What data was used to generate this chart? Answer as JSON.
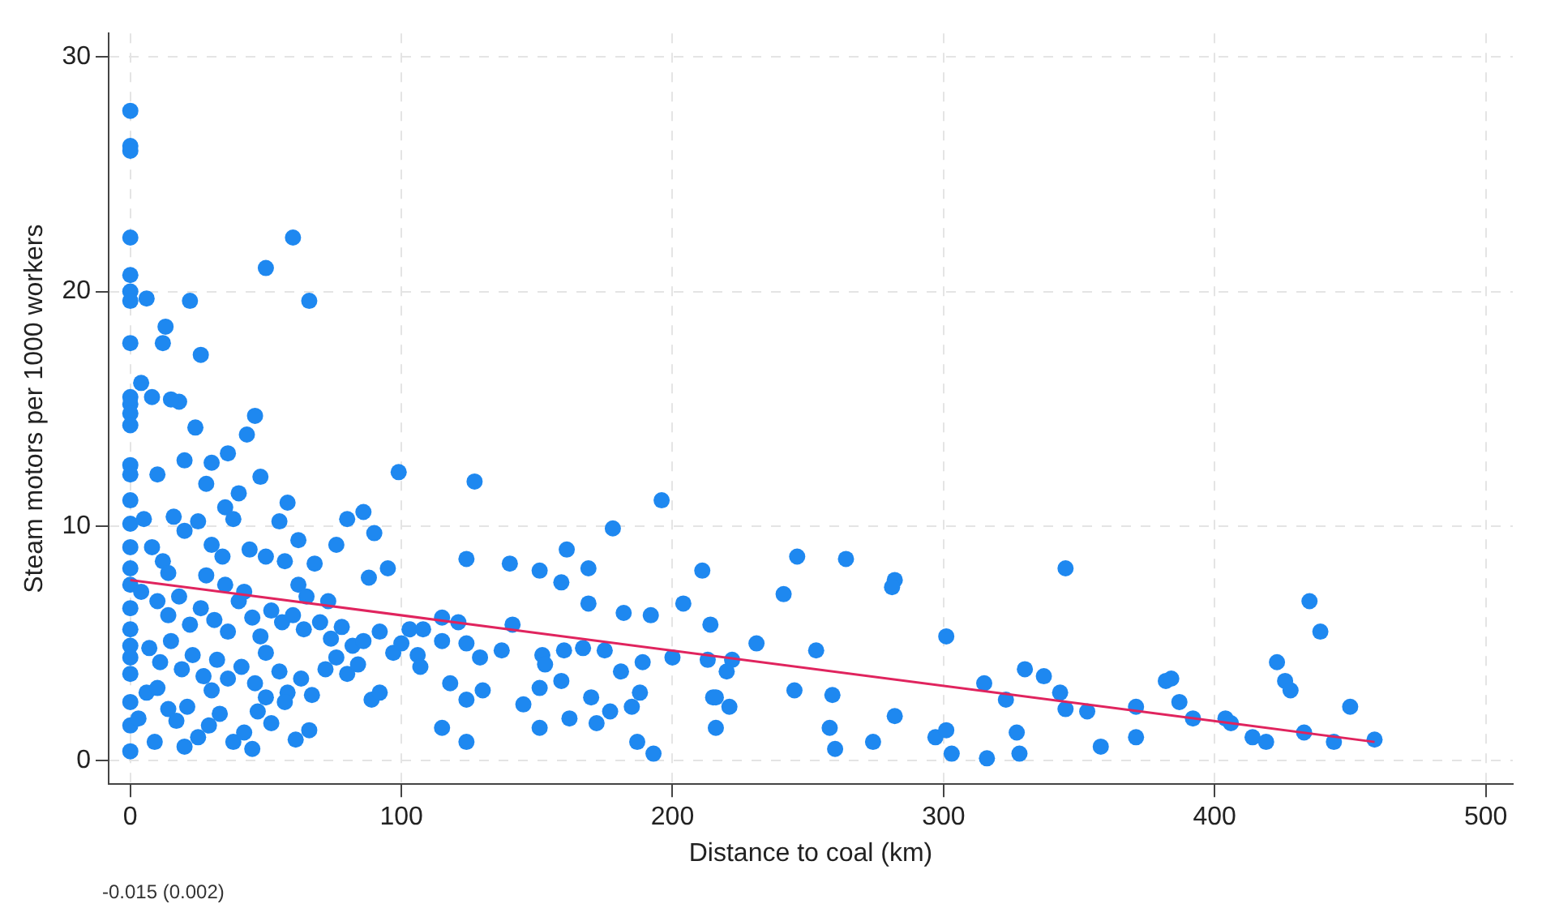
{
  "chart_data": {
    "type": "scatter",
    "xlabel": "Distance to coal (km)",
    "ylabel": "Steam motors per 1000 workers",
    "xlim": [
      -8,
      510
    ],
    "ylim": [
      -1,
      31
    ],
    "xticks": [
      0,
      100,
      200,
      300,
      400,
      500
    ],
    "yticks": [
      0,
      10,
      20,
      30
    ],
    "grid": true,
    "legend": false,
    "marker": "circle",
    "annotations": [
      "-0.015 (0.002)"
    ],
    "series": [
      {
        "type": "scatter",
        "color": "#1e88f0",
        "x": [
          0,
          0,
          0,
          0,
          0,
          0,
          0,
          0,
          0,
          0,
          0,
          0,
          0,
          0,
          0,
          0,
          0,
          0,
          0,
          0,
          0,
          0,
          0,
          0,
          0,
          0,
          0,
          4,
          6,
          12,
          13,
          18,
          22,
          24,
          26,
          36,
          43,
          46,
          50,
          60,
          66,
          58,
          62,
          30,
          40,
          10,
          15,
          8,
          20,
          28,
          35,
          48,
          55,
          5,
          8,
          12,
          16,
          20,
          25,
          30,
          34,
          38,
          44,
          50,
          57,
          62,
          68,
          76,
          80,
          86,
          90,
          99,
          95,
          88,
          4,
          10,
          14,
          18,
          22,
          26,
          31,
          36,
          40,
          45,
          48,
          52,
          56,
          60,
          64,
          70,
          74,
          78,
          82,
          86,
          92,
          97,
          100,
          103,
          106,
          7,
          11,
          15,
          19,
          23,
          27,
          32,
          36,
          41,
          46,
          50,
          55,
          58,
          63,
          67,
          72,
          76,
          80,
          84,
          89,
          92,
          6,
          10,
          14,
          17,
          21,
          25,
          29,
          33,
          38,
          42,
          47,
          52,
          57,
          61,
          66,
          20,
          9,
          45,
          3,
          30,
          50,
          35,
          28,
          42,
          14,
          73,
          65,
          127,
          196,
          178,
          124,
          140,
          151,
          161,
          159,
          169,
          169,
          182,
          192,
          204,
          211,
          214,
          241,
          246,
          264,
          282,
          281,
          301,
          231,
          253,
          222,
          220,
          213,
          200,
          189,
          181,
          175,
          167,
          160,
          152,
          153,
          159,
          151,
          141,
          137,
          129,
          124,
          130,
          124,
          118,
          115,
          115,
          121,
          108,
          107,
          145,
          151,
          170,
          162,
          172,
          177,
          185,
          188,
          187,
          193,
          115,
          124,
          215,
          216,
          221,
          216,
          245,
          259,
          258,
          260,
          274,
          282,
          297,
          301,
          303,
          345,
          315,
          323,
          330,
          337,
          343,
          345,
          353,
          327,
          328,
          316,
          358,
          371,
          371,
          382,
          384,
          387,
          392,
          404,
          406,
          414,
          419,
          423,
          426,
          428,
          433,
          435,
          439,
          444,
          450,
          459
        ],
        "values": [
          27.7,
          26.2,
          26.0,
          22.3,
          20.7,
          20.0,
          19.6,
          17.8,
          15.5,
          15.2,
          14.8,
          14.3,
          12.6,
          12.2,
          11.1,
          10.1,
          9.1,
          8.2,
          7.5,
          6.5,
          5.6,
          4.9,
          4.4,
          3.7,
          2.5,
          1.5,
          0.4,
          16.1,
          19.7,
          17.8,
          18.5,
          15.3,
          19.6,
          14.2,
          17.3,
          13.1,
          13.9,
          14.7,
          21.0,
          22.3,
          19.6,
          11.0,
          9.4,
          12.7,
          11.4,
          12.2,
          15.4,
          15.5,
          12.8,
          11.8,
          10.8,
          12.1,
          10.2,
          10.3,
          9.1,
          8.5,
          10.4,
          9.8,
          10.2,
          9.2,
          8.7,
          10.3,
          9.0,
          8.7,
          8.5,
          7.5,
          8.4,
          9.2,
          10.3,
          10.6,
          9.7,
          12.3,
          8.2,
          7.8,
          7.2,
          6.8,
          6.2,
          7.0,
          5.8,
          6.5,
          6.0,
          5.5,
          6.8,
          6.1,
          5.3,
          6.4,
          5.9,
          6.2,
          5.6,
          5.9,
          5.2,
          5.7,
          4.9,
          5.1,
          5.5,
          4.6,
          5.0,
          5.6,
          4.5,
          4.8,
          4.2,
          5.1,
          3.9,
          4.5,
          3.6,
          4.3,
          3.5,
          4.0,
          3.3,
          4.6,
          3.8,
          2.9,
          3.5,
          2.8,
          3.9,
          4.4,
          3.7,
          4.1,
          2.6,
          2.9,
          2.9,
          3.1,
          2.2,
          1.7,
          2.3,
          1.0,
          1.5,
          2.0,
          0.8,
          1.2,
          2.1,
          1.6,
          2.5,
          0.9,
          1.3,
          0.6,
          0.8,
          0.5,
          1.8,
          3.0,
          2.7,
          7.5,
          7.9,
          7.2,
          8.0,
          6.8,
          7.0,
          11.9,
          11.1,
          9.9,
          8.6,
          8.4,
          8.1,
          9.0,
          7.6,
          8.2,
          6.7,
          6.3,
          6.2,
          6.7,
          8.1,
          5.8,
          7.1,
          8.7,
          8.6,
          7.7,
          7.4,
          5.3,
          5.0,
          4.7,
          4.3,
          3.8,
          4.3,
          4.4,
          4.2,
          3.8,
          4.7,
          4.8,
          4.7,
          4.5,
          4.1,
          3.4,
          3.1,
          5.8,
          4.7,
          4.4,
          5.0,
          3.0,
          2.6,
          3.3,
          5.1,
          6.1,
          5.9,
          5.6,
          4.0,
          2.4,
          1.4,
          2.7,
          1.8,
          1.6,
          2.1,
          2.3,
          2.9,
          0.8,
          0.3,
          1.4,
          0.8,
          2.7,
          2.7,
          2.3,
          1.4,
          3.0,
          2.8,
          1.4,
          0.5,
          0.8,
          1.9,
          1.0,
          1.3,
          0.3,
          8.2,
          3.3,
          2.6,
          3.9,
          3.6,
          2.9,
          2.2,
          2.1,
          1.2,
          0.3,
          0.1,
          0.6,
          2.3,
          1.0,
          3.4,
          3.5,
          2.5,
          1.8,
          1.8,
          1.6,
          1.0,
          0.8,
          4.2,
          3.4,
          3.0,
          1.2,
          6.8,
          5.5,
          0.8,
          2.3,
          0.9
        ]
      },
      {
        "type": "line",
        "color": "#e0245e",
        "marker": "none",
        "x": [
          0,
          459
        ],
        "values": [
          7.7,
          0.8
        ]
      }
    ]
  }
}
